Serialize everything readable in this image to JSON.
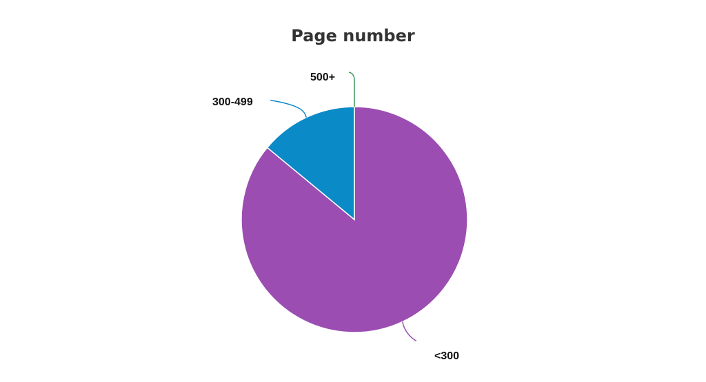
{
  "chart_data": {
    "type": "pie",
    "title": "Page number",
    "categories": [
      "<300",
      "300-499",
      "500+"
    ],
    "values": [
      86,
      14,
      0
    ],
    "colors": [
      "#9b4db1",
      "#0a8ac7",
      "#3a9a5a"
    ],
    "label_placement": "outside-with-leader-lines"
  }
}
